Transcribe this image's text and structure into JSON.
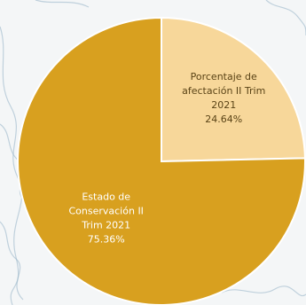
{
  "chart_data": {
    "type": "pie",
    "title": "",
    "slices": [
      {
        "label_lines": [
          "Porcentaje de",
          "afectación II Trim",
          "2021"
        ],
        "value_label": "24.64%",
        "value": 24.64,
        "color": "#f7d79a",
        "text_color": "#5a4316"
      },
      {
        "label_lines": [
          "Estado de",
          "Conservación II",
          "Trim 2021"
        ],
        "value_label": "75.36%",
        "value": 75.36,
        "color": "#d8a01f",
        "text_color": "#ffffff"
      }
    ],
    "legend": "none"
  },
  "background": {
    "color": "#f4f6f7",
    "map_line_color": "#9bb7c9"
  }
}
